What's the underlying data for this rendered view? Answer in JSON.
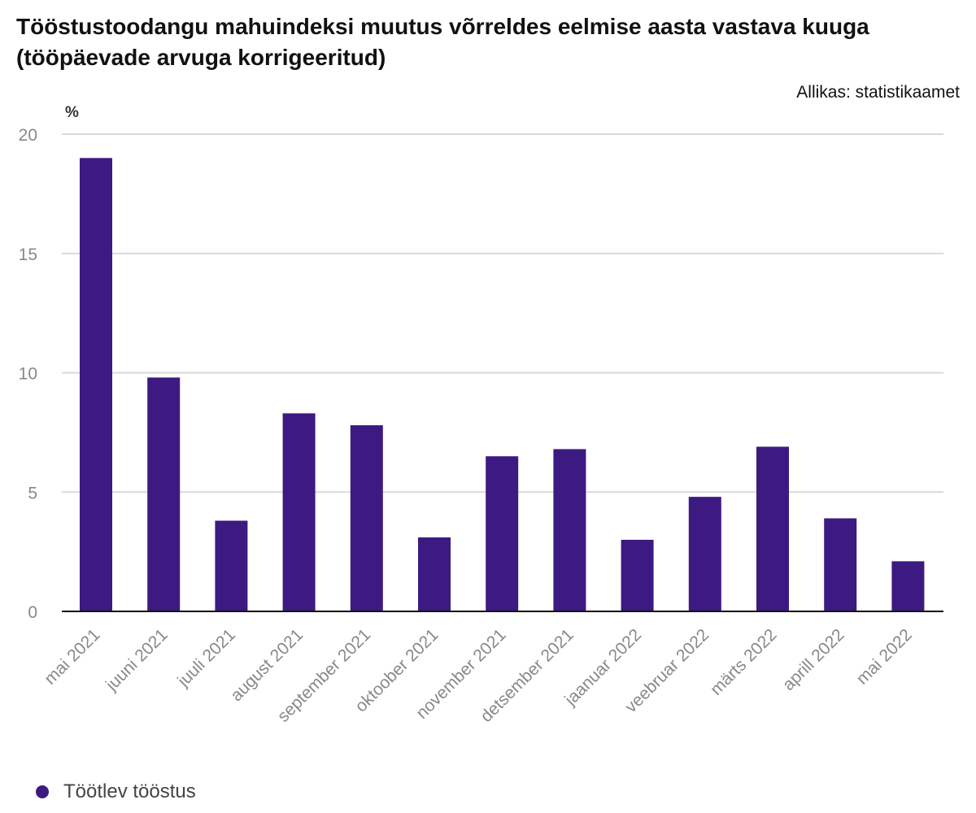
{
  "title": "Tööstustoodangu mahuindeksi muutus võrreldes eelmise aasta vastava kuuga (tööpäevade arvuga korrigeeritud)",
  "source": "Allikas: statistikaamet",
  "chart_data": {
    "type": "bar",
    "ylabel": "%",
    "ylim": [
      0,
      20
    ],
    "yticks": [
      0,
      5,
      10,
      15,
      20
    ],
    "grid": true,
    "legend_position": "bottom-left",
    "categories": [
      "mai 2021",
      "juuni 2021",
      "juuli 2021",
      "august 2021",
      "september 2021",
      "oktoober 2021",
      "november 2021",
      "detsember 2021",
      "jaanuar 2022",
      "veebruar 2022",
      "märts 2022",
      "aprill 2022",
      "mai 2022"
    ],
    "series": [
      {
        "name": "Töötlev tööstus",
        "color": "#3d1a81",
        "values": [
          19.0,
          9.8,
          3.8,
          8.3,
          7.8,
          3.1,
          6.5,
          6.8,
          3.0,
          4.8,
          6.9,
          3.9,
          2.1
        ]
      }
    ]
  }
}
